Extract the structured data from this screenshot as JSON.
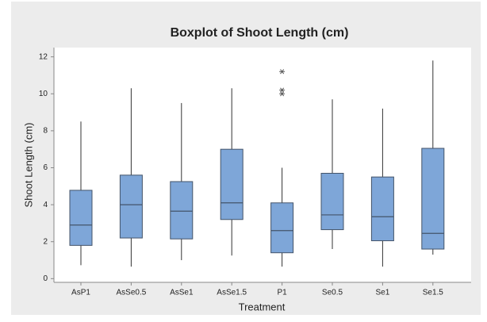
{
  "chart_data": {
    "type": "boxplot",
    "title": "Boxplot of Shoot Length (cm)",
    "x_label": "Treatment",
    "y_label": "Shoot Length (cm)",
    "categories": [
      "AsP1",
      "AsSe0.5",
      "AsSe1",
      "AsSe1.5",
      "P1",
      "Se0.5",
      "Se1",
      "Se1.5"
    ],
    "min": [
      0.73,
      0.65,
      1.0,
      1.25,
      0.65,
      1.6,
      0.65,
      1.3
    ],
    "q1": [
      1.8,
      2.2,
      2.15,
      3.2,
      1.4,
      2.65,
      2.05,
      1.6
    ],
    "median": [
      2.9,
      4.0,
      3.65,
      4.1,
      2.6,
      3.45,
      3.35,
      2.45
    ],
    "q3": [
      4.78,
      5.6,
      5.25,
      7.0,
      4.1,
      5.7,
      5.5,
      7.05
    ],
    "max": [
      8.5,
      10.3,
      9.5,
      10.3,
      6.0,
      9.7,
      9.2,
      11.8
    ],
    "outliers": [
      [],
      [],
      [],
      [],
      [
        11.2,
        10.2,
        10.0
      ],
      [],
      [],
      []
    ],
    "color": "#7ea6d8",
    "edge_color": "#44546a",
    "ylim": [
      -0.2,
      12.5
    ],
    "yticks": [
      0,
      2,
      4,
      6,
      8,
      10,
      12
    ]
  }
}
